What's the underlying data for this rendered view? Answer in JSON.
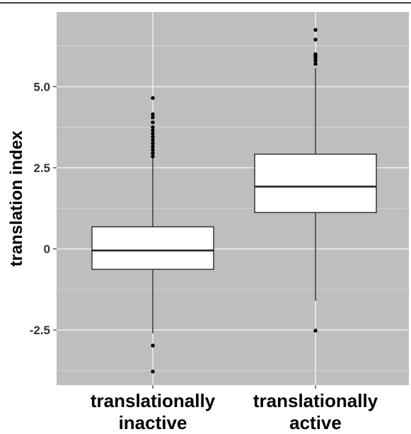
{
  "chart_data": {
    "type": "boxplot",
    "title": "",
    "xlabel": "",
    "ylabel": "translation index",
    "ylim": [
      -4.2,
      7.3
    ],
    "y_ticks": [
      {
        "value": -2.5,
        "label": "-2.5"
      },
      {
        "value": 0,
        "label": "0"
      },
      {
        "value": 2.5,
        "label": "2.5"
      },
      {
        "value": 5.0,
        "label": "5.0"
      }
    ],
    "grid": true,
    "legend": "none",
    "categories": [
      {
        "lines": [
          "translationally",
          "inactive"
        ]
      },
      {
        "lines": [
          "translationally",
          "active"
        ]
      }
    ],
    "boxes": [
      {
        "q1": -0.63,
        "median": -0.05,
        "q3": 0.68,
        "whisker_low": -2.6,
        "whisker_high": 2.8,
        "outliers": [
          -2.98,
          -3.78,
          2.85,
          2.95,
          3.05,
          3.15,
          3.25,
          3.35,
          3.45,
          3.55,
          3.65,
          3.75,
          3.9,
          4.05,
          4.15,
          4.65
        ]
      },
      {
        "q1": 1.12,
        "median": 1.92,
        "q3": 2.92,
        "whisker_low": -1.6,
        "whisker_high": 5.58,
        "outliers": [
          -2.52,
          5.7,
          5.8,
          5.88,
          5.95,
          6.0,
          6.45,
          6.75
        ]
      }
    ]
  },
  "colors": {
    "panel_background": "#bebebe",
    "grid_major": "#ececec",
    "grid_minor": "#d4d4d4",
    "box_fill": "#ffffff",
    "box_stroke": "#333333",
    "outlier": "#000000"
  }
}
